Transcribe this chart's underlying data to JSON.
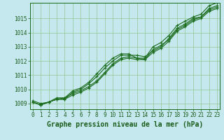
{
  "title": "Graphe pression niveau de la mer (hPa)",
  "background_color": "#c5e8ee",
  "plot_bg_color": "#c5e8ee",
  "line_color": "#1a6b1a",
  "grid_color": "#90c890",
  "text_color": "#1a5c1a",
  "ylim": [
    1008.6,
    1016.1
  ],
  "xlim": [
    -0.3,
    23.3
  ],
  "yticks": [
    1009,
    1010,
    1011,
    1012,
    1013,
    1014,
    1015
  ],
  "xticks": [
    0,
    1,
    2,
    3,
    4,
    5,
    6,
    7,
    8,
    9,
    10,
    11,
    12,
    13,
    14,
    15,
    16,
    17,
    18,
    19,
    20,
    21,
    22,
    23
  ],
  "series": [
    [
      1009.1,
      1008.9,
      1009.1,
      1009.3,
      1009.3,
      1009.6,
      1009.8,
      1010.1,
      1010.5,
      1011.1,
      1011.7,
      1012.1,
      1012.2,
      1012.1,
      1012.1,
      1012.8,
      1013.1,
      1013.5,
      1014.2,
      1014.5,
      1014.9,
      1015.1,
      1015.7,
      1015.9
    ],
    [
      1009.1,
      1008.9,
      1009.1,
      1009.4,
      1009.4,
      1009.7,
      1009.9,
      1010.2,
      1010.6,
      1011.2,
      1011.8,
      1012.2,
      1012.3,
      1012.2,
      1012.2,
      1013.0,
      1013.3,
      1013.8,
      1014.5,
      1014.8,
      1015.1,
      1015.3,
      1015.9,
      1016.1
    ],
    [
      1009.2,
      1009.0,
      1009.1,
      1009.3,
      1009.3,
      1009.8,
      1010.0,
      1010.4,
      1010.9,
      1011.5,
      1012.0,
      1012.4,
      1012.4,
      1012.4,
      1012.3,
      1012.7,
      1013.0,
      1013.6,
      1014.3,
      1014.6,
      1015.0,
      1015.1,
      1015.6,
      1015.8
    ],
    [
      1009.1,
      1008.9,
      1009.1,
      1009.3,
      1009.4,
      1009.9,
      1010.1,
      1010.5,
      1011.1,
      1011.7,
      1012.2,
      1012.5,
      1012.5,
      1012.2,
      1012.1,
      1012.6,
      1012.9,
      1013.4,
      1014.1,
      1014.4,
      1014.8,
      1015.0,
      1015.5,
      1015.7
    ]
  ],
  "marker": "+",
  "linewidth": 0.8,
  "markersize": 3.5,
  "markeredgewidth": 0.8,
  "tick_fontsize": 5.5,
  "title_fontsize": 7.0
}
